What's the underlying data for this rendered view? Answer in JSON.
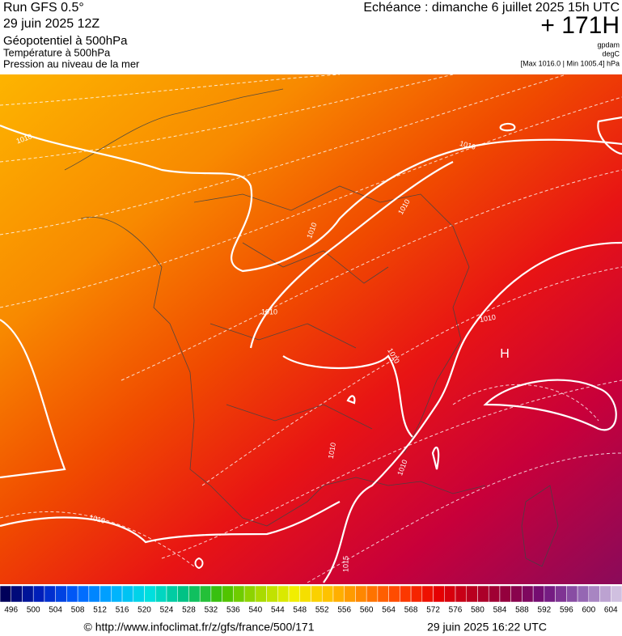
{
  "header": {
    "run": "Run GFS 0.5°",
    "run_date": "29 juin 2025 12Z",
    "layer1": "Géopotentiel à 500hPa",
    "layer2": "Température à 500hPa",
    "layer3": "Pression au niveau de la mer",
    "valid": "Echéance : dimanche 6 juillet 2025 15h UTC",
    "lead": "+ 171H",
    "unit1": "gpdam",
    "unit2": "degC",
    "pressure_range": "[Max 1016.0 | Min 1005.4] hPa"
  },
  "map": {
    "isobar_labels": [
      "1010",
      "1010",
      "1010",
      "1010",
      "1010",
      "1010",
      "1010",
      "1010",
      "1010",
      "1010",
      "1015"
    ],
    "high_marker": "H"
  },
  "scale": {
    "labels": [
      496,
      500,
      504,
      508,
      512,
      516,
      520,
      524,
      528,
      532,
      536,
      540,
      544,
      548,
      552,
      556,
      560,
      564,
      568,
      572,
      576,
      580,
      584,
      588,
      592,
      596,
      600,
      604
    ]
  },
  "footer": {
    "source": "© http://www.infoclimat.fr/z/gfs/france/500/171",
    "generated": "29 juin 2025 16:22 UTC"
  }
}
